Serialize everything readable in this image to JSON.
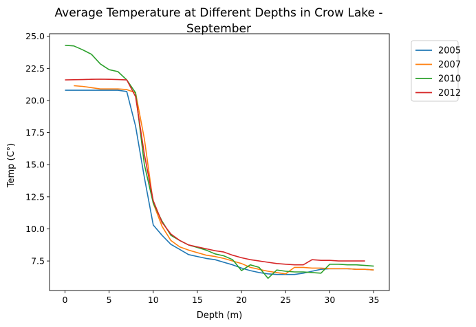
{
  "chart_data": {
    "type": "line",
    "title_lines": [
      "Average Temperature at Different Depths in Crow Lake -",
      "September"
    ],
    "xlabel": "Depth (m)",
    "ylabel": "Temp (C°)",
    "xlim": [
      -1.75,
      36.75
    ],
    "ylim": [
      5.2,
      25.2
    ],
    "xticks": [
      0,
      5,
      10,
      15,
      20,
      25,
      30,
      35
    ],
    "yticks": [
      7.5,
      10.0,
      12.5,
      15.0,
      17.5,
      20.0,
      22.5,
      25.0
    ],
    "grid": false,
    "legend_position": "outside-top-right",
    "series": [
      {
        "name": "2005",
        "color": "#1f77b4",
        "x": [
          0,
          1,
          2,
          3,
          4,
          5,
          6,
          7,
          8,
          9,
          10,
          11,
          12,
          13,
          14,
          15,
          16,
          17,
          18,
          19,
          20,
          21,
          22,
          23,
          24,
          25,
          26,
          27,
          28,
          29,
          30,
          31,
          32,
          33,
          34,
          35
        ],
        "y": [
          20.8,
          20.8,
          20.8,
          20.8,
          20.8,
          20.8,
          20.8,
          20.7,
          18.0,
          14.0,
          10.3,
          9.5,
          8.8,
          8.4,
          8.0,
          7.85,
          7.7,
          7.6,
          7.4,
          7.2,
          6.95,
          6.75,
          6.6,
          6.5,
          6.45,
          6.45,
          6.45,
          6.55,
          6.7,
          6.85,
          6.9,
          6.9,
          6.9,
          6.85,
          6.85,
          6.8
        ]
      },
      {
        "name": "2007",
        "color": "#ff7f0e",
        "x": [
          1,
          2,
          3,
          4,
          5,
          6,
          7,
          8,
          9,
          10,
          11,
          12,
          13,
          14,
          15,
          16,
          17,
          18,
          19,
          20,
          21,
          22,
          23,
          24,
          25,
          26,
          27,
          28,
          29,
          30,
          31,
          32,
          33,
          34,
          35
        ],
        "y": [
          21.15,
          21.1,
          21.0,
          20.9,
          20.9,
          20.9,
          20.85,
          20.6,
          17.0,
          12.0,
          10.2,
          9.1,
          8.6,
          8.35,
          8.15,
          7.95,
          7.85,
          7.7,
          7.5,
          7.3,
          7.0,
          6.85,
          6.7,
          6.6,
          6.5,
          7.0,
          7.0,
          6.95,
          6.95,
          6.9,
          6.9,
          6.9,
          6.85,
          6.85,
          6.8
        ]
      },
      {
        "name": "2010",
        "color": "#2ca02c",
        "x": [
          0,
          1,
          2,
          3,
          4,
          5,
          6,
          7,
          8,
          9,
          10,
          11,
          12,
          13,
          14,
          15,
          16,
          17,
          18,
          19,
          20,
          21,
          22,
          23,
          24,
          25,
          26,
          27,
          28,
          29,
          30,
          31,
          32,
          33,
          34,
          35
        ],
        "y": [
          24.3,
          24.25,
          23.95,
          23.6,
          22.85,
          22.4,
          22.25,
          21.6,
          20.6,
          15.0,
          12.0,
          10.6,
          9.5,
          9.1,
          8.75,
          8.55,
          8.35,
          8.05,
          7.9,
          7.6,
          6.75,
          7.2,
          7.0,
          6.15,
          6.8,
          6.7,
          6.65,
          6.65,
          6.6,
          6.55,
          7.25,
          7.25,
          7.2,
          7.2,
          7.15,
          7.1
        ]
      },
      {
        "name": "2012",
        "color": "#d62728",
        "x": [
          0,
          1,
          2,
          3,
          4,
          5,
          6,
          7,
          8,
          9,
          10,
          11,
          12,
          13,
          14,
          15,
          16,
          17,
          18,
          19,
          20,
          21,
          22,
          23,
          24,
          25,
          26,
          27,
          28,
          29,
          30,
          31,
          32,
          33,
          34
        ],
        "y": [
          21.6,
          21.62,
          21.63,
          21.65,
          21.66,
          21.65,
          21.63,
          21.6,
          20.3,
          15.8,
          12.2,
          10.5,
          9.6,
          9.1,
          8.75,
          8.6,
          8.45,
          8.3,
          8.2,
          7.95,
          7.75,
          7.6,
          7.5,
          7.4,
          7.3,
          7.25,
          7.2,
          7.2,
          7.6,
          7.55,
          7.55,
          7.5,
          7.5,
          7.5,
          7.5
        ]
      }
    ]
  }
}
